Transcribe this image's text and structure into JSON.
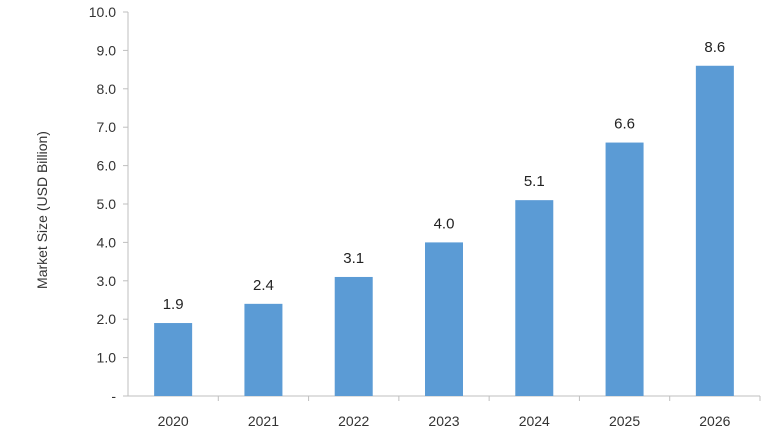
{
  "chart_data": {
    "type": "bar",
    "title": "",
    "xlabel": "",
    "ylabel": "Market Size (USD Billion)",
    "categories": [
      "2020",
      "2021",
      "2022",
      "2023",
      "2024",
      "2025",
      "2026"
    ],
    "values": [
      1.9,
      2.4,
      3.1,
      4.0,
      5.1,
      6.6,
      8.6
    ],
    "data_labels": [
      "1.9",
      "2.4",
      "3.1",
      "4.0",
      "5.1",
      "6.6",
      "8.6"
    ],
    "ylim": [
      0,
      10
    ],
    "y_ticks": [
      "-",
      "1.0",
      "2.0",
      "3.0",
      "4.0",
      "5.0",
      "6.0",
      "7.0",
      "8.0",
      "9.0",
      "10.0"
    ],
    "grid": false,
    "legend": "none",
    "bar_color": "#5b9bd5",
    "axis_color": "#bfbfbf"
  }
}
